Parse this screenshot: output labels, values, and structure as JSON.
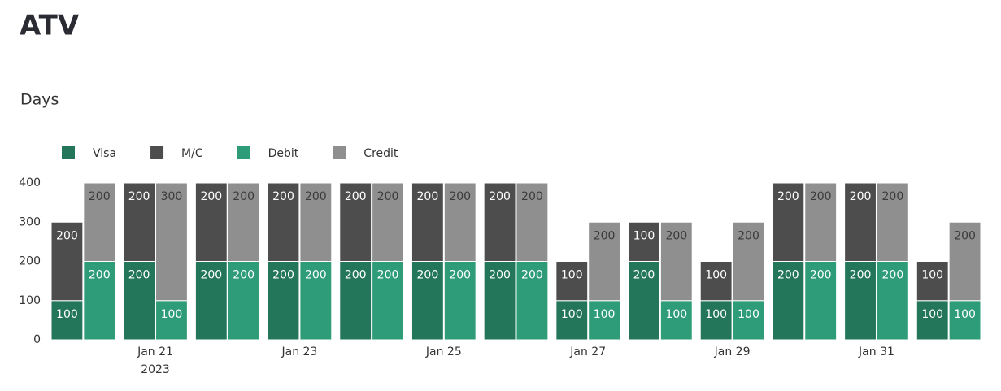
{
  "chart_data": {
    "type": "grouped_stacked_bar",
    "title": "ATV",
    "subtitle": "Days",
    "categories": [
      null,
      "Jan 21",
      null,
      "Jan 23",
      null,
      "Jan 25",
      null,
      "Jan 27",
      null,
      "Jan 29",
      null,
      "Jan 31",
      null
    ],
    "year_label": "2023",
    "series": [
      {
        "name": "Visa",
        "color": "#23765a",
        "stack": "left",
        "values": [
          100,
          200,
          200,
          200,
          200,
          200,
          200,
          100,
          200,
          100,
          200,
          200,
          100
        ]
      },
      {
        "name": "M/C",
        "color": "#4d4d4d",
        "stack": "left",
        "values": [
          200,
          200,
          200,
          200,
          200,
          200,
          200,
          100,
          100,
          100,
          200,
          200,
          100
        ]
      },
      {
        "name": "Debit",
        "color": "#2e9c78",
        "stack": "right",
        "values": [
          200,
          100,
          200,
          200,
          200,
          200,
          200,
          100,
          100,
          100,
          200,
          200,
          100
        ]
      },
      {
        "name": "Credit",
        "color": "#8f8f8f",
        "stack": "right",
        "values": [
          200,
          300,
          200,
          200,
          200,
          200,
          200,
          200,
          200,
          200,
          200,
          200,
          200
        ]
      }
    ],
    "ylim": [
      0,
      400
    ],
    "yticks": [
      0,
      100,
      200,
      300,
      400
    ],
    "legend": "top-left"
  }
}
